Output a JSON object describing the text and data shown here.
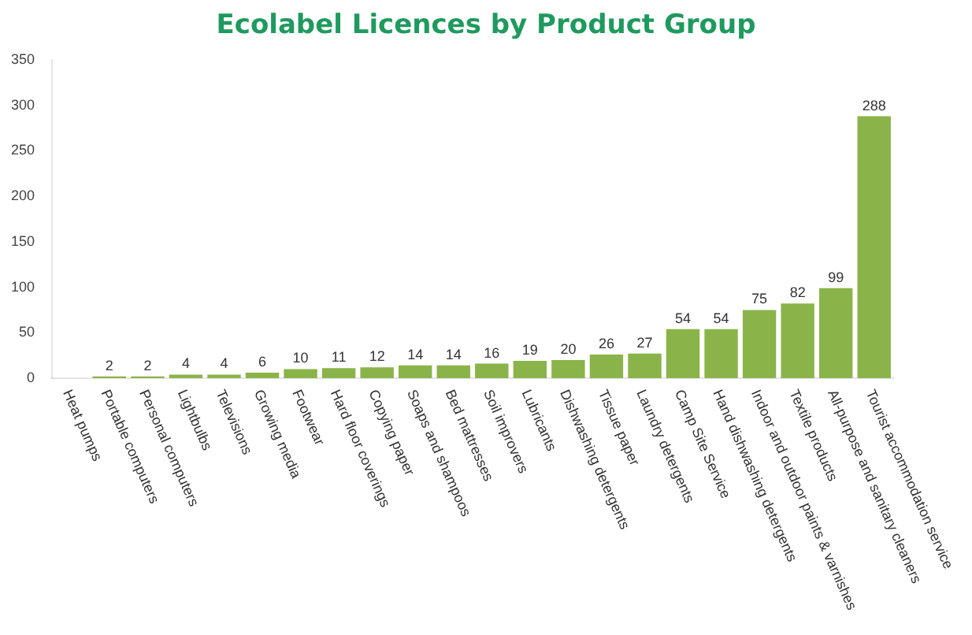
{
  "chart_data": {
    "type": "bar",
    "title": "Ecolabel Licences by Product Group",
    "categories": [
      "Heat pumps",
      "Portable computers",
      "Personal computers",
      "Lightbulbs",
      "Televisions",
      "Growing media",
      "Footwear",
      "Hard floor coverings",
      "Copying paper",
      "Soaps and shampoos",
      "Bed mattresses",
      "Soil improvers",
      "Lubricants",
      "Dishwashing detergents",
      "Tissue paper",
      "Laundry detergents",
      "Camp Site Service",
      "Hand dishwashing detergents",
      "Indoor and outdoor paints & varnishes",
      "Textile products",
      "All-purpose and sanitary cleaners",
      "Tourist accommodation service"
    ],
    "values": [
      0,
      2,
      2,
      4,
      4,
      6,
      10,
      11,
      12,
      14,
      14,
      16,
      19,
      20,
      26,
      27,
      54,
      54,
      75,
      82,
      99,
      288
    ],
    "value_labels": [
      null,
      "2",
      "2",
      "4",
      "4",
      "6",
      "10",
      "11",
      "12",
      "14",
      "14",
      "16",
      "19",
      "20",
      "26",
      "27",
      "54",
      "54",
      "75",
      "82",
      "99",
      "288"
    ],
    "color": "#8ab44a",
    "ylim": [
      0,
      350
    ],
    "yticks": [
      0,
      50,
      100,
      150,
      200,
      250,
      300,
      350
    ],
    "grid": false
  }
}
